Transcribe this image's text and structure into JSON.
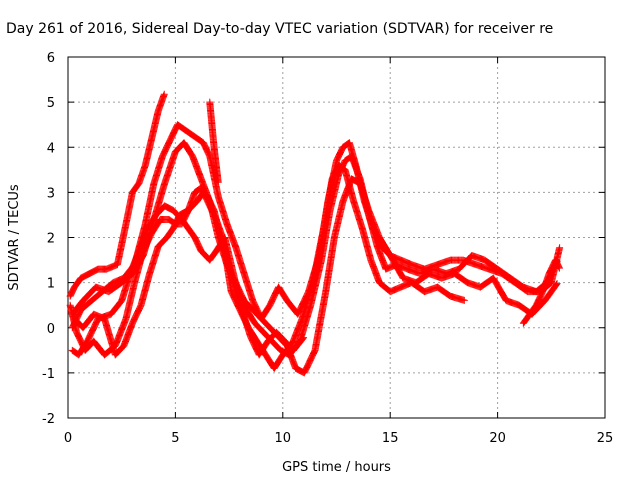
{
  "chart_data": {
    "type": "scatter",
    "title": "Day 261 of 2016, Sidereal Day-to-day VTEC variation (SDTVAR) for receiver re",
    "xlabel": "GPS time / hours",
    "ylabel": "SDTVAR / TECUs",
    "xlim": [
      0,
      25
    ],
    "ylim": [
      -2,
      6
    ],
    "x_ticks": [
      0,
      5,
      10,
      15,
      20,
      25
    ],
    "y_ticks": [
      -2,
      -1,
      0,
      1,
      2,
      3,
      4,
      5,
      6
    ],
    "grid": true,
    "marker": "plus",
    "color": "#ff0000",
    "series": [
      {
        "x": [
          0.1,
          0.3,
          0.6,
          1.0,
          1.4,
          1.8,
          2.3,
          2.7,
          3.0,
          3.3,
          3.6,
          3.9,
          4.2,
          4.5
        ],
        "y": [
          0.7,
          0.9,
          1.1,
          1.2,
          1.3,
          1.3,
          1.4,
          2.3,
          3.0,
          3.2,
          3.6,
          4.2,
          4.8,
          5.2
        ]
      },
      {
        "x": [
          0.2,
          0.5,
          0.9,
          1.4,
          2.0,
          2.5,
          2.9,
          3.3,
          3.7,
          4.1,
          4.5,
          4.9,
          5.3,
          5.6,
          5.9,
          6.2,
          6.6,
          6.9,
          7.3,
          7.7,
          8.1,
          8.5,
          8.9,
          9.3,
          9.7,
          10.1,
          10.5,
          11.0
        ],
        "y": [
          -0.5,
          -0.6,
          -0.3,
          0.2,
          0.3,
          0.6,
          1.2,
          1.7,
          2.2,
          2.5,
          2.7,
          2.6,
          2.4,
          2.2,
          2.0,
          1.7,
          1.5,
          1.7,
          2.0,
          1.2,
          0.4,
          -0.2,
          -0.6,
          -0.3,
          -0.1,
          -0.3,
          -0.5,
          -0.2
        ]
      },
      {
        "x": [
          0.3,
          0.7,
          1.2,
          1.7,
          2.2,
          2.6,
          3.0,
          3.4,
          3.8,
          4.2,
          4.6,
          4.9,
          5.2,
          5.6,
          6.0,
          6.3,
          6.6,
          6.9,
          7.2,
          7.6,
          8.0,
          8.4,
          8.8,
          9.2,
          9.6,
          10.0,
          10.4,
          10.9,
          11.4,
          11.9,
          12.3,
          12.6,
          12.9,
          13.3,
          13.7,
          14.1,
          14.5,
          15.0,
          15.5,
          16.0,
          16.6,
          17.2,
          17.8,
          18.5
        ],
        "y": [
          0.2,
          0.0,
          0.3,
          0.2,
          -0.6,
          -0.4,
          0.1,
          0.5,
          1.2,
          1.8,
          2.0,
          2.2,
          2.5,
          2.6,
          2.8,
          3.0,
          2.7,
          2.4,
          2.0,
          0.8,
          0.4,
          0.0,
          -0.3,
          -0.6,
          -0.9,
          -0.6,
          -0.4,
          0.2,
          1.0,
          2.2,
          3.3,
          3.6,
          3.5,
          2.8,
          2.2,
          1.5,
          1.0,
          0.8,
          0.9,
          1.0,
          0.8,
          0.9,
          0.7,
          0.6
        ]
      },
      {
        "x": [
          0.2,
          0.6,
          1.1,
          1.6,
          2.1,
          2.6,
          3.1,
          3.6,
          4.0,
          4.4,
          4.8,
          5.1,
          5.4,
          5.7,
          6.0,
          6.3,
          6.6,
          7.0,
          7.4,
          7.8,
          8.2,
          8.6,
          9.0,
          9.4,
          9.8,
          10.2,
          10.7,
          11.2,
          11.7,
          12.1,
          12.5,
          12.8,
          13.1,
          13.4,
          13.8,
          14.2,
          14.6,
          15.0,
          15.5,
          16.0,
          16.6,
          17.2,
          17.8,
          18.4,
          19.0,
          19.6,
          20.2,
          20.8,
          21.4,
          22.0,
          22.5,
          22.9
        ],
        "y": [
          0.0,
          0.4,
          0.6,
          0.8,
          1.0,
          1.1,
          1.4,
          2.3,
          3.2,
          3.8,
          4.2,
          4.5,
          4.4,
          4.3,
          4.2,
          4.1,
          3.8,
          2.9,
          2.3,
          1.8,
          1.2,
          0.6,
          0.2,
          0.5,
          0.9,
          0.6,
          0.3,
          0.8,
          1.6,
          2.8,
          3.7,
          4.0,
          4.1,
          3.6,
          2.8,
          2.2,
          1.8,
          1.6,
          1.5,
          1.4,
          1.3,
          1.4,
          1.5,
          1.5,
          1.4,
          1.3,
          1.2,
          1.0,
          0.8,
          0.8,
          1.0,
          1.8
        ]
      },
      {
        "x": [
          0.1,
          0.4,
          0.8,
          1.2,
          1.7,
          2.2,
          2.7,
          3.1,
          3.5,
          3.9,
          4.3,
          4.7,
          5.0,
          5.3,
          5.6,
          5.9,
          6.2,
          6.5,
          6.8,
          7.1,
          7.5,
          7.9,
          8.3,
          8.7,
          9.1,
          9.5,
          9.9,
          10.3,
          10.8,
          11.3,
          11.8,
          12.2,
          12.6,
          12.9,
          13.2,
          13.6,
          14.0,
          14.4,
          14.8,
          15.3,
          15.8,
          16.4,
          17.0,
          17.6,
          18.2,
          18.8,
          19.4,
          20.0,
          20.6,
          21.2,
          21.8,
          22.3,
          22.8
        ],
        "y": [
          0.5,
          -0.1,
          -0.5,
          -0.3,
          -0.6,
          -0.4,
          0.2,
          1.0,
          1.7,
          2.1,
          2.4,
          2.4,
          2.3,
          2.3,
          2.6,
          3.0,
          3.1,
          2.9,
          2.6,
          2.0,
          1.3,
          0.7,
          0.4,
          0.1,
          -0.1,
          -0.3,
          -0.5,
          -0.6,
          -0.3,
          0.5,
          1.5,
          2.6,
          3.4,
          3.7,
          3.8,
          3.3,
          2.5,
          1.8,
          1.3,
          1.4,
          1.3,
          1.2,
          1.3,
          1.2,
          1.3,
          1.6,
          1.5,
          1.3,
          1.1,
          0.9,
          0.8,
          1.0,
          1.5
        ]
      },
      {
        "x": [
          0.2,
          0.7,
          1.3,
          1.9,
          2.5,
          3.0,
          3.5,
          4.0,
          4.5,
          5.0,
          5.4,
          5.8,
          6.2,
          6.6,
          7.0,
          7.4,
          7.8,
          8.2,
          8.6,
          9.0,
          9.4,
          9.8,
          10.2,
          10.6,
          11.0,
          11.5,
          12.0,
          12.4,
          12.8,
          13.2,
          13.6,
          14.0,
          14.5,
          15.0,
          15.6,
          16.2,
          16.8,
          17.4,
          18.0,
          18.6,
          19.2,
          19.8,
          20.4,
          21.0,
          21.6,
          22.2,
          22.8
        ],
        "y": [
          0.3,
          0.6,
          0.9,
          0.8,
          1.0,
          1.2,
          1.6,
          2.4,
          3.2,
          3.9,
          4.1,
          3.8,
          3.3,
          2.8,
          2.0,
          1.4,
          1.0,
          0.6,
          0.4,
          0.2,
          0.0,
          -0.2,
          -0.4,
          -0.9,
          -1.0,
          -0.5,
          0.8,
          2.0,
          2.8,
          3.3,
          3.2,
          2.6,
          2.0,
          1.6,
          1.1,
          1.0,
          1.2,
          1.1,
          1.2,
          1.0,
          0.9,
          1.1,
          0.6,
          0.5,
          0.3,
          0.6,
          1.0
        ]
      },
      {
        "x": [
          6.6,
          6.7,
          6.8,
          6.9,
          7.0
        ],
        "y": [
          5.0,
          4.5,
          4.0,
          3.6,
          3.2
        ]
      },
      {
        "x": [
          21.2,
          21.5,
          21.8,
          22.1,
          22.4,
          22.7,
          22.9
        ],
        "y": [
          0.1,
          0.3,
          0.5,
          0.8,
          1.2,
          1.5,
          1.3
        ]
      }
    ]
  }
}
